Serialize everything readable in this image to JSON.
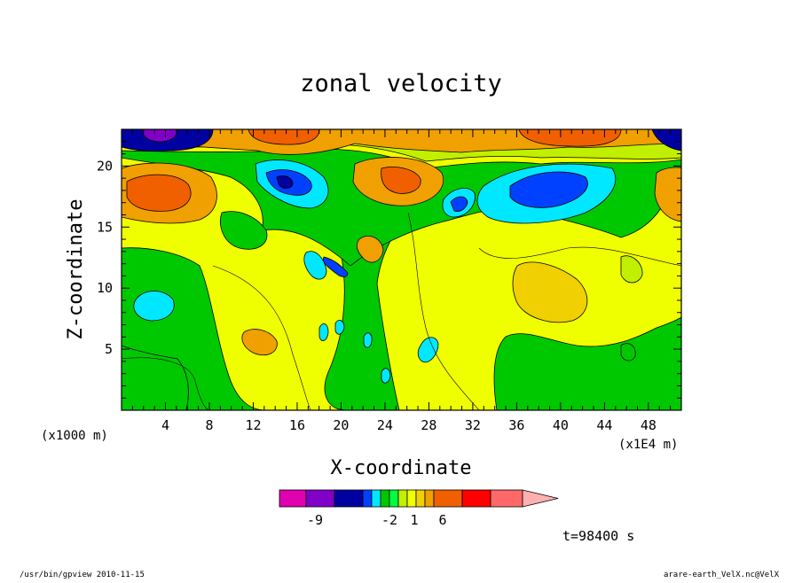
{
  "chart_data": {
    "type": "heatmap",
    "title": "zonal velocity",
    "xlabel": "X-coordinate",
    "ylabel": "Z-coordinate",
    "x_unit_left": "(x1000 m)",
    "x_unit_right": "(x1E4 m)",
    "xlim": [
      0,
      51
    ],
    "ylim": [
      0,
      23
    ],
    "x_ticks": [
      4,
      8,
      12,
      16,
      20,
      24,
      28,
      32,
      36,
      40,
      44,
      48
    ],
    "y_ticks": [
      5,
      10,
      15,
      20
    ],
    "colorbar": {
      "levels": [
        -9,
        -8,
        -7,
        -6,
        -5,
        -4,
        -3,
        -2,
        -1,
        0,
        1,
        2,
        3,
        4,
        5,
        6,
        7,
        8
      ],
      "colors": [
        "#e000b0",
        "#8000c8",
        "#0000a0",
        "#0040ff",
        "#00e8ff",
        "#00c800",
        "#00ff40",
        "#c0f000",
        "#f0ff00",
        "#f0d000",
        "#f0a000",
        "#f06000",
        "#ff0000",
        "#ff6868",
        "#ffb0b0"
      ],
      "tick_labels": [
        "-9",
        "-2",
        "1",
        "6"
      ]
    },
    "features": [
      {
        "x": 3.5,
        "z": 17.7,
        "value": 6
      },
      {
        "x": 3.5,
        "z": 22.5,
        "value": -9
      },
      {
        "x": 14,
        "z": 22.7,
        "value": 6
      },
      {
        "x": 38,
        "z": 22.7,
        "value": 6
      },
      {
        "x": 50.5,
        "z": 22.5,
        "value": -6
      },
      {
        "x": 15,
        "z": 18.8,
        "value": -5
      },
      {
        "x": 39,
        "z": 18.5,
        "value": -4
      },
      {
        "x": 30.5,
        "z": 17,
        "value": -3
      },
      {
        "x": 3.5,
        "z": 8.5,
        "value": -1
      },
      {
        "x": 28,
        "z": 5,
        "value": -1
      },
      {
        "x": 39.5,
        "z": 9.5,
        "value": 2
      },
      {
        "x": 25,
        "z": 19,
        "value": 3
      },
      {
        "x": 21,
        "z": 8,
        "value": -3
      },
      {
        "x": 49.5,
        "z": 17.5,
        "value": 3
      }
    ],
    "time_label": "t=98400 s"
  },
  "footer": {
    "left": "/usr/bin/gpview   2010-11-15",
    "right": "arare-earth_VelX.nc@VelX"
  }
}
